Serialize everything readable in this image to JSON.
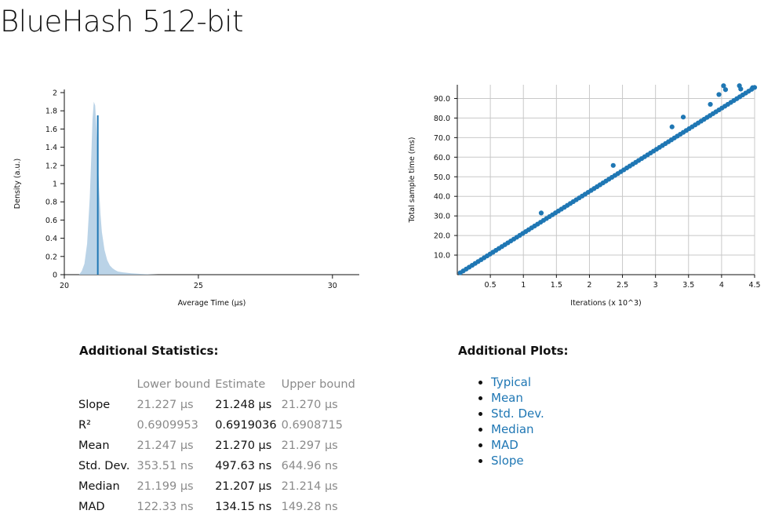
{
  "page": {
    "title": "BlueHash 512-bit"
  },
  "colors": {
    "accent": "#1f77b4",
    "kde_fill": "#aecbe3",
    "grid": "#c8c8c8",
    "muted": "#8a8a8a"
  },
  "chart_data": [
    {
      "type": "area",
      "xlabel": "Average Time (µs)",
      "ylabel": "Density (a.u.)",
      "xlim": [
        20,
        31
      ],
      "ylim": [
        0,
        2
      ],
      "xticks": [
        20,
        25,
        30
      ],
      "yticks": [
        0,
        0.2,
        0.4,
        0.6,
        0.8,
        1,
        1.2,
        1.4,
        1.6,
        1.8,
        2
      ],
      "ytick_labels": [
        "0",
        "0.2",
        "0.4",
        "0.6",
        "0.8",
        "1",
        "1.2",
        "1.4",
        "1.6",
        "1.8",
        "2"
      ],
      "grid": false,
      "series": [
        {
          "x": [
            20.55,
            20.65,
            20.75,
            20.85,
            20.95,
            21.0,
            21.05,
            21.1,
            21.15,
            21.2,
            21.25,
            21.3,
            21.35,
            21.4,
            21.5,
            21.6,
            21.7,
            21.8,
            21.9,
            22.0,
            22.2,
            22.5,
            23.0,
            23.5
          ],
          "y": [
            0.0,
            0.04,
            0.12,
            0.34,
            0.85,
            1.25,
            1.7,
            1.9,
            1.86,
            1.6,
            1.25,
            0.92,
            0.66,
            0.47,
            0.27,
            0.16,
            0.1,
            0.07,
            0.05,
            0.035,
            0.025,
            0.015,
            0.005,
            0.0
          ]
        }
      ],
      "estimate_line": {
        "x": 21.248,
        "y": 1.75
      }
    },
    {
      "type": "scatter",
      "xlabel": "Iterations (x 10^3)",
      "ylabel": "Total sample time (ms)",
      "xlim": [
        0,
        4.5
      ],
      "ylim": [
        0,
        97
      ],
      "xticks": [
        0.5,
        1,
        1.5,
        2,
        2.5,
        3,
        3.5,
        4,
        4.5
      ],
      "xtick_labels": [
        "0.5",
        "1",
        "1.5",
        "2",
        "2.5",
        "3",
        "3.5",
        "4",
        "4.5"
      ],
      "yticks": [
        10,
        20,
        30,
        40,
        50,
        60,
        70,
        80,
        90
      ],
      "ytick_labels": [
        "10.0",
        "20.0",
        "30.0",
        "40.0",
        "50.0",
        "60.0",
        "70.0",
        "80.0",
        "90.0"
      ],
      "grid": true,
      "trend": {
        "slope_ms_per_1000_iterations": 21.248,
        "point_count": 100
      },
      "outliers": [
        {
          "x": 1.27,
          "y": 31.5
        },
        {
          "x": 2.36,
          "y": 55.8
        },
        {
          "x": 3.25,
          "y": 75.5
        },
        {
          "x": 3.42,
          "y": 80.5
        },
        {
          "x": 3.83,
          "y": 87.0
        },
        {
          "x": 3.96,
          "y": 92.0
        },
        {
          "x": 4.03,
          "y": 96.5
        },
        {
          "x": 4.06,
          "y": 94.5
        },
        {
          "x": 4.27,
          "y": 96.5
        },
        {
          "x": 4.29,
          "y": 94.8
        },
        {
          "x": 4.47,
          "y": 95.5
        }
      ]
    }
  ],
  "stats": {
    "heading": "Additional Statistics:",
    "columns": [
      "",
      "Lower bound",
      "Estimate",
      "Upper bound"
    ],
    "rows": [
      {
        "label": "Slope",
        "lower": "21.227 µs",
        "estimate": "21.248 µs",
        "upper": "21.270 µs"
      },
      {
        "label": "R²",
        "lower": "0.6909953",
        "estimate": "0.6919036",
        "upper": "0.6908715"
      },
      {
        "label": "Mean",
        "lower": "21.247 µs",
        "estimate": "21.270 µs",
        "upper": "21.297 µs"
      },
      {
        "label": "Std. Dev.",
        "lower": "353.51 ns",
        "estimate": "497.63 ns",
        "upper": "644.96 ns"
      },
      {
        "label": "Median",
        "lower": "21.199 µs",
        "estimate": "21.207 µs",
        "upper": "21.214 µs"
      },
      {
        "label": "MAD",
        "lower": "122.33 ns",
        "estimate": "134.15 ns",
        "upper": "149.28 ns"
      }
    ]
  },
  "plots": {
    "heading": "Additional Plots:",
    "links": [
      "Typical",
      "Mean",
      "Std. Dev.",
      "Median",
      "MAD",
      "Slope"
    ]
  }
}
